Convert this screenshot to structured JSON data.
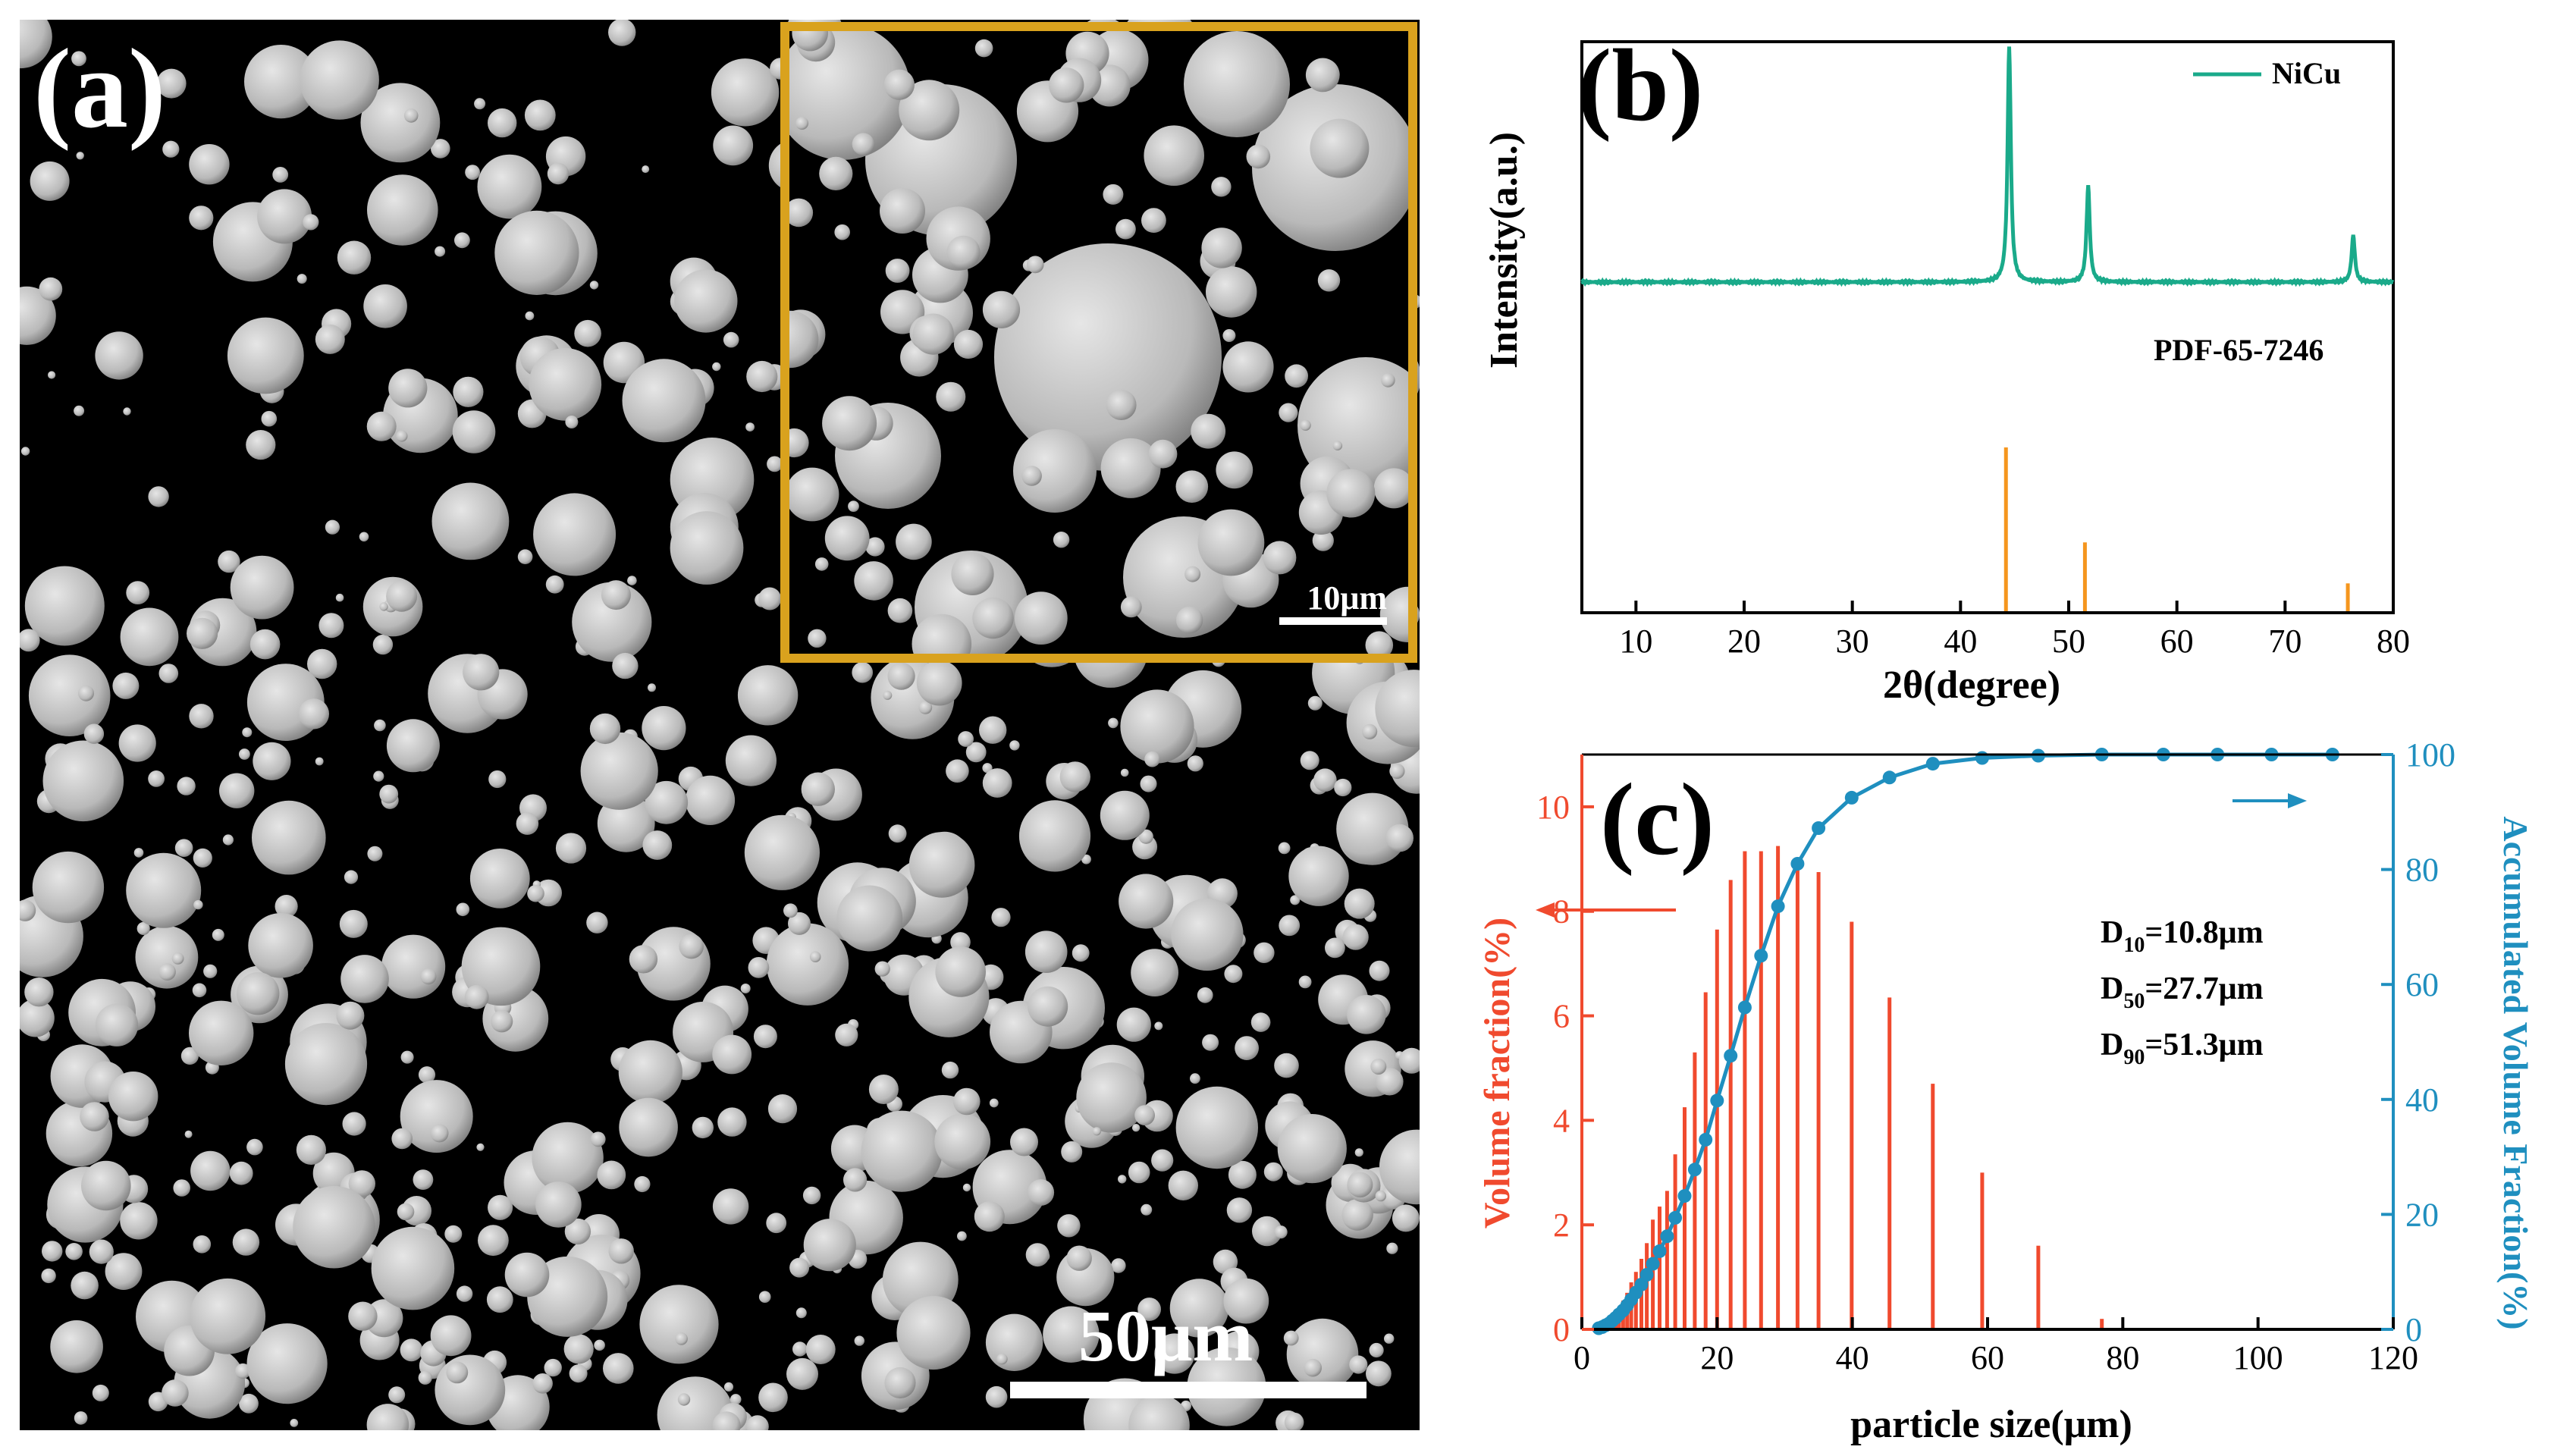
{
  "panel_a": {
    "label": "(a)",
    "inset_scale_label": "10μm",
    "main_scale_label": "50μm",
    "colors": {
      "inset_border": "#d9a21e",
      "background": "#000000",
      "particle": "#c8c8c8"
    }
  },
  "chart_data": [
    {
      "id": "b",
      "type": "line",
      "panel_label": "(b)",
      "xlabel": "2θ(degree)",
      "ylabel": "Intensity(a.u.)",
      "xlim": [
        5,
        80
      ],
      "xticks": [
        10,
        20,
        30,
        40,
        50,
        60,
        70,
        80
      ],
      "legend": {
        "label": "NiCu",
        "placement": "top-right"
      },
      "reference_label": "PDF-65-7246",
      "series": [
        {
          "name": "NiCu",
          "color": "#1aaa8a",
          "peaks": [
            {
              "x": 44.5,
              "height": 1.0
            },
            {
              "x": 51.8,
              "height": 0.41
            },
            {
              "x": 76.3,
              "height": 0.2
            }
          ]
        }
      ],
      "reference_lines": {
        "name": "PDF-65-7246",
        "color": "#f5961e",
        "lines": [
          {
            "x": 44.2,
            "height": 1.0
          },
          {
            "x": 51.5,
            "height": 0.42
          },
          {
            "x": 75.8,
            "height": 0.17
          }
        ]
      }
    },
    {
      "id": "c",
      "type": "bar",
      "panel_label": "(c)",
      "xlabel": "particle size(μm)",
      "ylabel_left": "Volume fraction(%)",
      "ylabel_right": "Accumulated Volume Fraction(%)",
      "xlim": [
        0,
        120
      ],
      "xticks": [
        0,
        20,
        40,
        60,
        80,
        100,
        120
      ],
      "ylim_left": [
        0,
        11
      ],
      "yticks_left": [
        0,
        2,
        4,
        6,
        8,
        10
      ],
      "ylim_right": [
        0,
        100
      ],
      "yticks_right": [
        0,
        20,
        40,
        60,
        80,
        100
      ],
      "colors": {
        "bars": "#f04a2e",
        "cumulative": "#1f8fbf"
      },
      "annotations": [
        {
          "base": "D",
          "sub": "10",
          "value": "=10.8μm"
        },
        {
          "base": "D",
          "sub": "50",
          "value": "=27.7μm"
        },
        {
          "base": "D",
          "sub": "90",
          "value": "=51.3μm"
        }
      ],
      "bars": {
        "name": "Volume fraction",
        "x": [
          2.5,
          3.0,
          3.5,
          4.0,
          4.5,
          5.0,
          5.5,
          6.1,
          6.7,
          7.3,
          8.0,
          8.8,
          9.6,
          10.5,
          11.5,
          12.6,
          13.8,
          15.2,
          16.7,
          18.3,
          20.0,
          22.0,
          24.1,
          26.5,
          29.0,
          31.9,
          35.0,
          39.9,
          45.5,
          51.9,
          59.2,
          67.5,
          76.9
        ],
        "values": [
          0.02,
          0.05,
          0.1,
          0.15,
          0.22,
          0.3,
          0.4,
          0.55,
          0.7,
          0.9,
          1.1,
          1.35,
          1.65,
          2.1,
          2.35,
          2.65,
          3.35,
          4.25,
          5.3,
          6.45,
          7.65,
          8.6,
          9.15,
          9.15,
          9.25,
          8.8,
          8.75,
          7.8,
          6.35,
          4.7,
          3.0,
          1.6,
          0.2
        ]
      },
      "cumulative": {
        "name": "Accumulated Volume Fraction",
        "x": [
          2.5,
          3.0,
          3.5,
          4.0,
          4.5,
          5.0,
          5.5,
          6.1,
          6.7,
          7.3,
          8.0,
          8.8,
          9.6,
          10.5,
          11.5,
          12.6,
          13.8,
          15.2,
          16.7,
          18.3,
          20.0,
          22.0,
          24.1,
          26.5,
          29.0,
          31.9,
          35.0,
          39.9,
          45.5,
          51.9,
          59.2,
          67.5,
          76.9,
          86.0,
          94.0,
          102.0,
          111.0
        ],
        "values": [
          0.2,
          0.4,
          0.7,
          1.0,
          1.5,
          2.0,
          2.6,
          3.3,
          4.2,
          5.2,
          6.4,
          7.8,
          9.5,
          11.4,
          13.6,
          16.2,
          19.4,
          23.2,
          27.8,
          33.0,
          39.8,
          47.6,
          56.0,
          65.0,
          73.6,
          81.0,
          87.2,
          92.5,
          96.0,
          98.4,
          99.4,
          99.8,
          100,
          100,
          100,
          100,
          100
        ]
      }
    }
  ]
}
